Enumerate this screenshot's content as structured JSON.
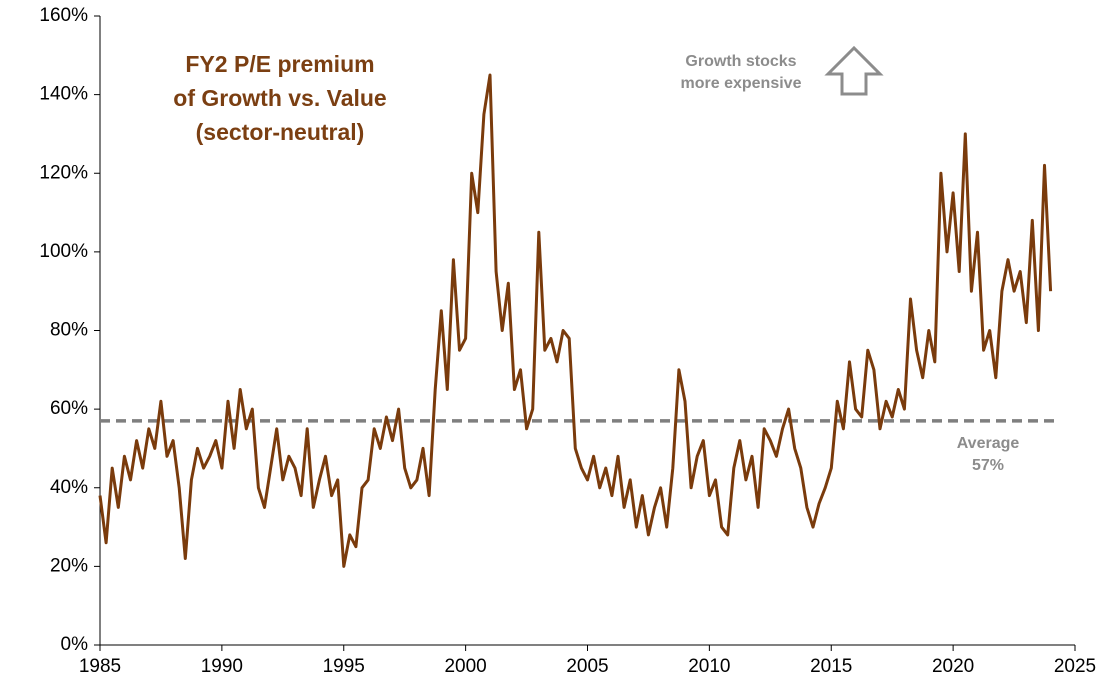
{
  "chart_data": {
    "type": "line",
    "title": [
      "FY2 P/E premium",
      "of Growth vs. Value",
      "(sector-neutral)"
    ],
    "annotation": [
      "Growth stocks",
      "more expensive"
    ],
    "reference_line": {
      "value": 57,
      "label": [
        "Average",
        "57%"
      ],
      "color": "#7f7f7f"
    },
    "color": "#7a3b0c",
    "x": [
      1985,
      1985.25,
      1985.5,
      1985.75,
      1986,
      1986.25,
      1986.5,
      1986.75,
      1987,
      1987.25,
      1987.5,
      1987.75,
      1988,
      1988.25,
      1988.5,
      1988.75,
      1989,
      1989.25,
      1989.5,
      1989.75,
      1990,
      1990.25,
      1990.5,
      1990.75,
      1991,
      1991.25,
      1991.5,
      1991.75,
      1992,
      1992.25,
      1992.5,
      1992.75,
      1993,
      1993.25,
      1993.5,
      1993.75,
      1994,
      1994.25,
      1994.5,
      1994.75,
      1995,
      1995.25,
      1995.5,
      1995.75,
      1996,
      1996.25,
      1996.5,
      1996.75,
      1997,
      1997.25,
      1997.5,
      1997.75,
      1998,
      1998.25,
      1998.5,
      1998.75,
      1999,
      1999.25,
      1999.5,
      1999.75,
      2000,
      2000.25,
      2000.5,
      2000.75,
      2001,
      2001.25,
      2001.5,
      2001.75,
      2002,
      2002.25,
      2002.5,
      2002.75,
      2003,
      2003.25,
      2003.5,
      2003.75,
      2004,
      2004.25,
      2004.5,
      2004.75,
      2005,
      2005.25,
      2005.5,
      2005.75,
      2006,
      2006.25,
      2006.5,
      2006.75,
      2007,
      2007.25,
      2007.5,
      2007.75,
      2008,
      2008.25,
      2008.5,
      2008.75,
      2009,
      2009.25,
      2009.5,
      2009.75,
      2010,
      2010.25,
      2010.5,
      2010.75,
      2011,
      2011.25,
      2011.5,
      2011.75,
      2012,
      2012.25,
      2012.5,
      2012.75,
      2013,
      2013.25,
      2013.5,
      2013.75,
      2014,
      2014.25,
      2014.5,
      2014.75,
      2015,
      2015.25,
      2015.5,
      2015.75,
      2016,
      2016.25,
      2016.5,
      2016.75,
      2017,
      2017.25,
      2017.5,
      2017.75,
      2018,
      2018.25,
      2018.5,
      2018.75,
      2019,
      2019.25,
      2019.5,
      2019.75,
      2020,
      2020.25,
      2020.5,
      2020.75,
      2021,
      2021.25,
      2021.5,
      2021.75,
      2022,
      2022.25,
      2022.5,
      2022.75,
      2023,
      2023.25,
      2023.5,
      2023.75,
      2024
    ],
    "values": [
      38,
      26,
      45,
      35,
      48,
      42,
      52,
      45,
      55,
      50,
      62,
      48,
      52,
      40,
      22,
      42,
      50,
      45,
      48,
      52,
      45,
      62,
      50,
      65,
      55,
      60,
      40,
      35,
      45,
      55,
      42,
      48,
      45,
      38,
      55,
      35,
      42,
      48,
      38,
      42,
      20,
      28,
      25,
      40,
      42,
      55,
      50,
      58,
      52,
      60,
      45,
      40,
      42,
      50,
      38,
      65,
      85,
      65,
      98,
      75,
      78,
      120,
      110,
      135,
      145,
      95,
      80,
      92,
      65,
      70,
      55,
      60,
      105,
      75,
      78,
      72,
      80,
      78,
      50,
      45,
      42,
      48,
      40,
      45,
      38,
      48,
      35,
      42,
      30,
      38,
      28,
      35,
      40,
      30,
      45,
      70,
      62,
      40,
      48,
      52,
      38,
      42,
      30,
      28,
      45,
      52,
      42,
      48,
      35,
      55,
      52,
      48,
      55,
      60,
      50,
      45,
      35,
      30,
      36,
      40,
      45,
      62,
      55,
      72,
      60,
      58,
      75,
      70,
      55,
      62,
      58,
      65,
      60,
      88,
      75,
      68,
      80,
      72,
      120,
      100,
      115,
      95,
      130,
      90,
      105,
      75,
      80,
      68,
      90,
      98,
      90,
      95,
      82,
      108,
      80,
      122,
      90
    ],
    "xlim": [
      1985,
      2025
    ],
    "xticks": [
      1985,
      1990,
      1995,
      2000,
      2005,
      2010,
      2015,
      2020,
      2025
    ],
    "ylim": [
      0,
      160
    ],
    "yticks": [
      {
        "value": 0,
        "label": "0%"
      },
      {
        "value": 20,
        "label": "20%"
      },
      {
        "value": 40,
        "label": "40%"
      },
      {
        "value": 60,
        "label": "60%"
      },
      {
        "value": 80,
        "label": "80%"
      },
      {
        "value": 100,
        "label": "100%"
      },
      {
        "value": 120,
        "label": "120%"
      },
      {
        "value": 140,
        "label": "140%"
      },
      {
        "value": 160,
        "label": "160%"
      }
    ]
  }
}
